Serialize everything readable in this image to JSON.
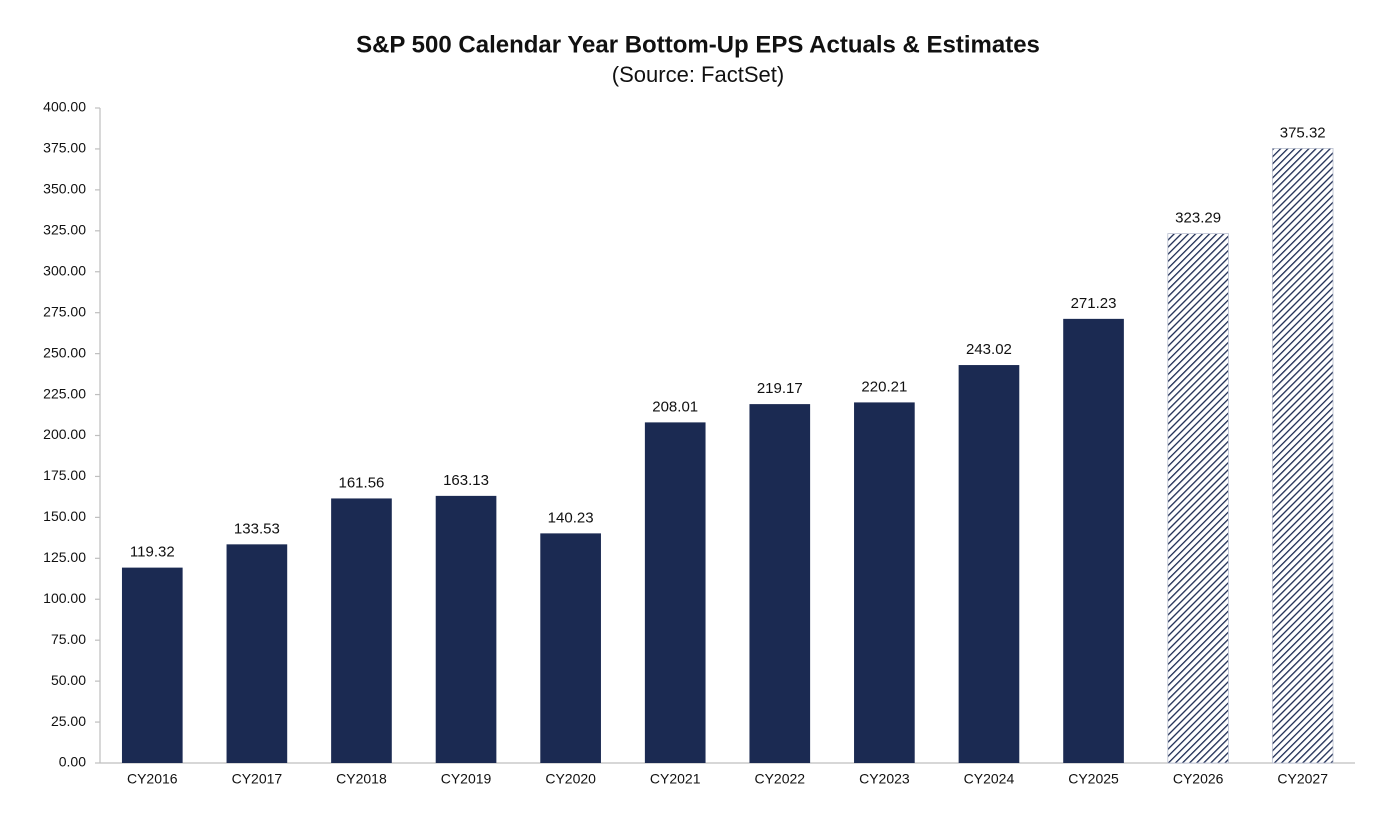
{
  "chart_data": {
    "type": "bar",
    "title": "S&P 500 Calendar Year Bottom-Up EPS Actuals & Estimates",
    "subtitle": "(Source: FactSet)",
    "categories": [
      "CY2016",
      "CY2017",
      "CY2018",
      "CY2019",
      "CY2020",
      "CY2021",
      "CY2022",
      "CY2023",
      "CY2024",
      "CY2025",
      "CY2026",
      "CY2027"
    ],
    "values": [
      119.32,
      133.53,
      161.56,
      163.13,
      140.23,
      208.01,
      219.17,
      220.21,
      243.02,
      271.23,
      323.29,
      375.32
    ],
    "hatched": [
      false,
      false,
      false,
      false,
      false,
      false,
      false,
      false,
      false,
      false,
      true,
      true
    ],
    "color": "#1b2a52",
    "ylim": [
      0,
      400
    ],
    "yticks": [
      {
        "value": 0,
        "label": "0.00"
      },
      {
        "value": 25,
        "label": "25.00"
      },
      {
        "value": 50,
        "label": "50.00"
      },
      {
        "value": 75,
        "label": "75.00"
      },
      {
        "value": 100,
        "label": "100.00"
      },
      {
        "value": 125,
        "label": "125.00"
      },
      {
        "value": 150,
        "label": "150.00"
      },
      {
        "value": 175,
        "label": "175.00"
      },
      {
        "value": 200,
        "label": "200.00"
      },
      {
        "value": 225,
        "label": "225.00"
      },
      {
        "value": 250,
        "label": "250.00"
      },
      {
        "value": 275,
        "label": "275.00"
      },
      {
        "value": 300,
        "label": "300.00"
      },
      {
        "value": 325,
        "label": "325.00"
      },
      {
        "value": 350,
        "label": "350.00"
      },
      {
        "value": 375,
        "label": "375.00"
      },
      {
        "value": 400,
        "label": "400.00"
      }
    ],
    "grid": false
  }
}
